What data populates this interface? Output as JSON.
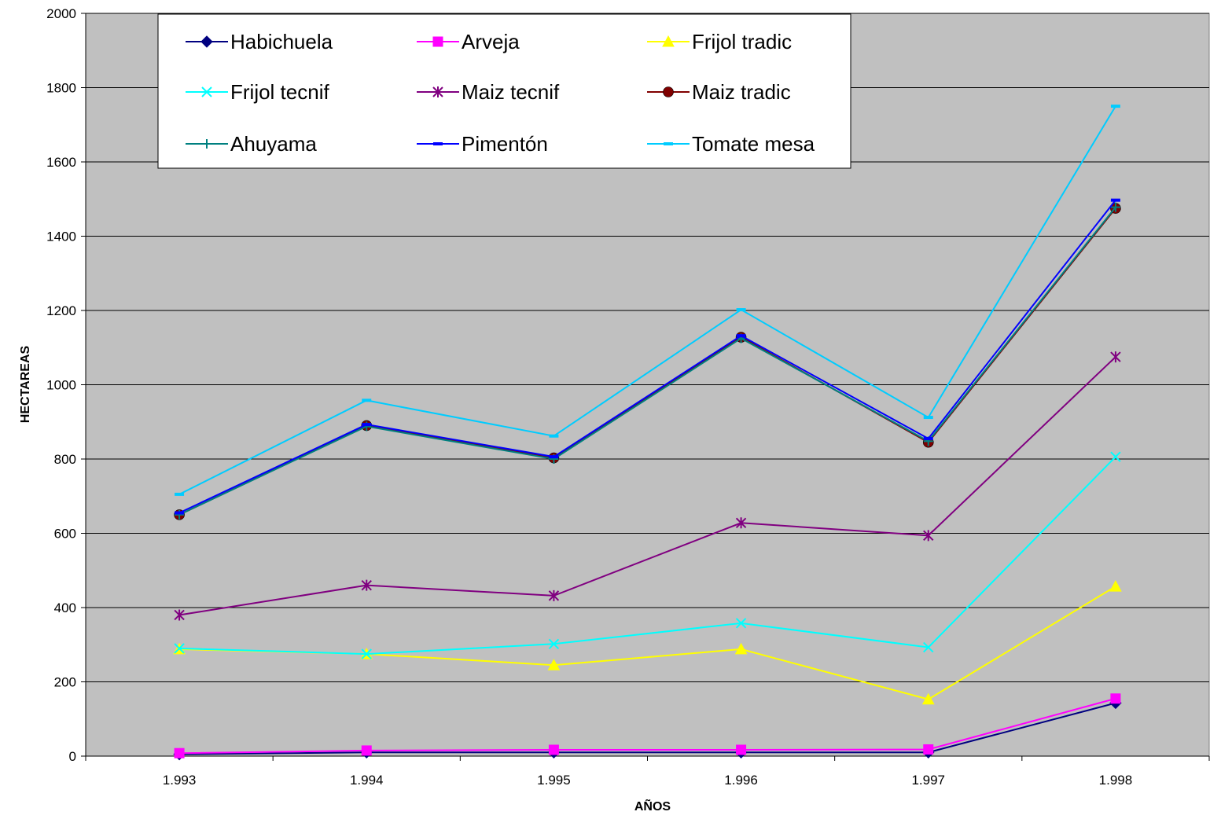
{
  "chart_data": {
    "type": "line",
    "title": "",
    "xlabel": "AÑOS",
    "ylabel": "HECTAREAS",
    "categories": [
      "1.993",
      "1.994",
      "1.995",
      "1.996",
      "1.997",
      "1.998"
    ],
    "ylim": [
      0,
      2000
    ],
    "yticks": [
      "0",
      "200",
      "400",
      "600",
      "800",
      "1000",
      "1200",
      "1400",
      "1600",
      "1800",
      "2000"
    ],
    "grid": true,
    "legend_position": "top-left inside plot",
    "plot_background": "#c0c0c0",
    "series": [
      {
        "name": "Habichuela",
        "color": "#000080",
        "marker": "diamond",
        "values": [
          5,
          10,
          10,
          10,
          10,
          143
        ]
      },
      {
        "name": "Arveja",
        "color": "#ff00ff",
        "marker": "square",
        "values": [
          8,
          15,
          17,
          17,
          18,
          155
        ]
      },
      {
        "name": "Frijol tradic",
        "color": "#ffff00",
        "marker": "triangle",
        "values": [
          288,
          275,
          245,
          288,
          153,
          457
        ]
      },
      {
        "name": "Frijol tecnif",
        "color": "#00ffff",
        "marker": "x",
        "values": [
          290,
          275,
          302,
          358,
          293,
          806
        ]
      },
      {
        "name": "Maiz tecnif",
        "color": "#800080",
        "marker": "asterisk",
        "values": [
          380,
          460,
          432,
          628,
          594,
          1075
        ]
      },
      {
        "name": "Maiz tradic",
        "color": "#800000",
        "marker": "circle",
        "values": [
          650,
          890,
          803,
          1128,
          845,
          1475
        ]
      },
      {
        "name": "Ahuyama",
        "color": "#008080",
        "marker": "plus",
        "values": [
          650,
          888,
          800,
          1125,
          848,
          1478
        ]
      },
      {
        "name": "Pimentón",
        "color": "#0000ff",
        "marker": "dash",
        "values": [
          655,
          893,
          806,
          1132,
          855,
          1497
        ]
      },
      {
        "name": "Tomate mesa",
        "color": "#00ccff",
        "marker": "dash",
        "values": [
          705,
          958,
          862,
          1202,
          912,
          1750
        ]
      }
    ]
  }
}
